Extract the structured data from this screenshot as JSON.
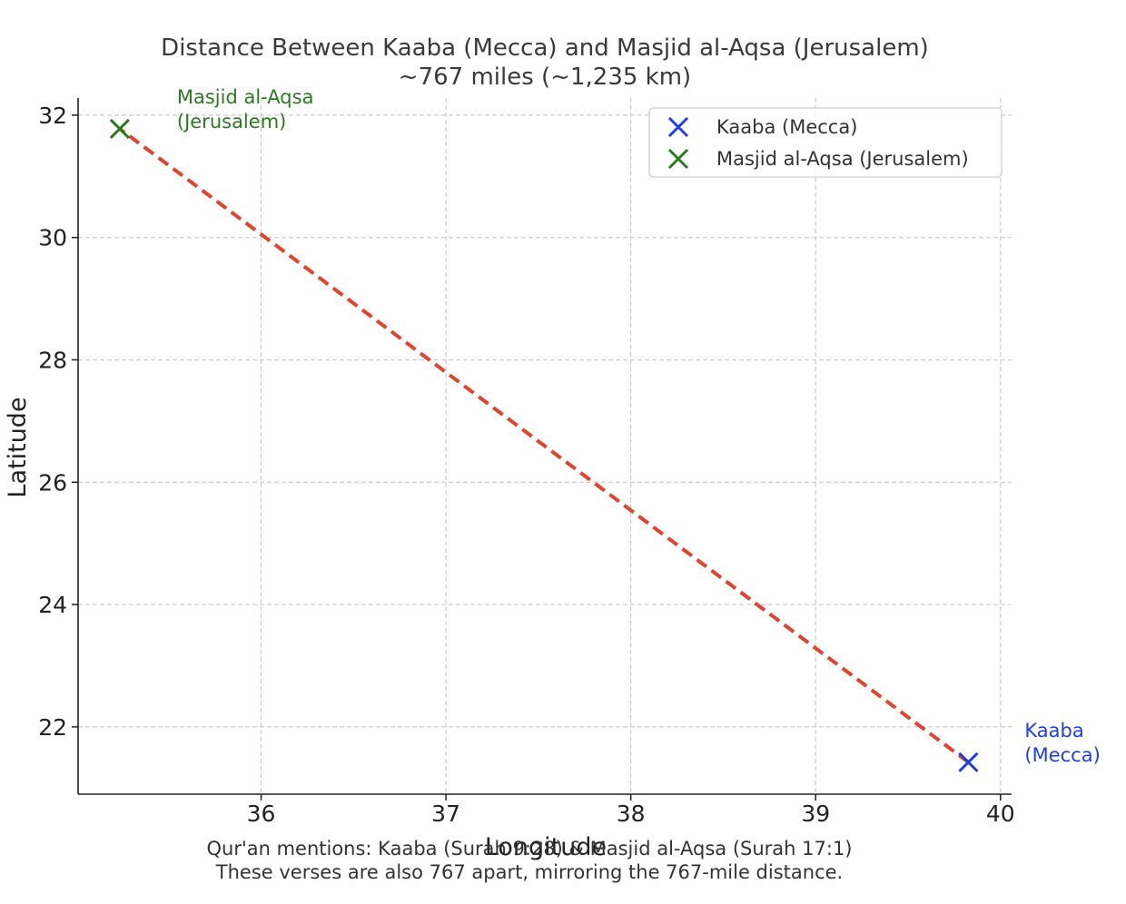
{
  "chart_data": {
    "type": "scatter",
    "title": "Distance Between Kaaba (Mecca) and Masjid al-Aqsa (Jerusalem)",
    "subtitle": "~767 miles (~1,235 km)",
    "xlabel": "Longitude",
    "ylabel": "Latitude",
    "xlim": [
      35.01,
      40.06
    ],
    "ylim": [
      20.9,
      32.28
    ],
    "xticks": [
      36,
      37,
      38,
      39,
      40
    ],
    "yticks": [
      22,
      24,
      26,
      28,
      30,
      32
    ],
    "grid": true,
    "grid_style": "dashed",
    "legend_position": "top-right",
    "series": [
      {
        "name": "Kaaba (Mecca)",
        "x": 39.8262,
        "y": 21.4225,
        "marker": "x",
        "color": "#1f3ee6",
        "annotation": [
          "Kaaba",
          "(Mecca)"
        ]
      },
      {
        "name": "Masjid al-Aqsa (Jerusalem)",
        "x": 35.2354,
        "y": 31.7767,
        "marker": "x",
        "color": "#2b7a1f",
        "annotation": [
          "Masjid al-Aqsa",
          "(Jerusalem)"
        ]
      }
    ],
    "connector": {
      "style": "dashed",
      "color": "#e0442f"
    },
    "footnote": [
      "Qur'an mentions: Kaaba (Surah 9:28) & Masjid al-Aqsa (Surah 17:1)",
      "These verses are also 767 apart, mirroring the 767-mile distance."
    ]
  }
}
